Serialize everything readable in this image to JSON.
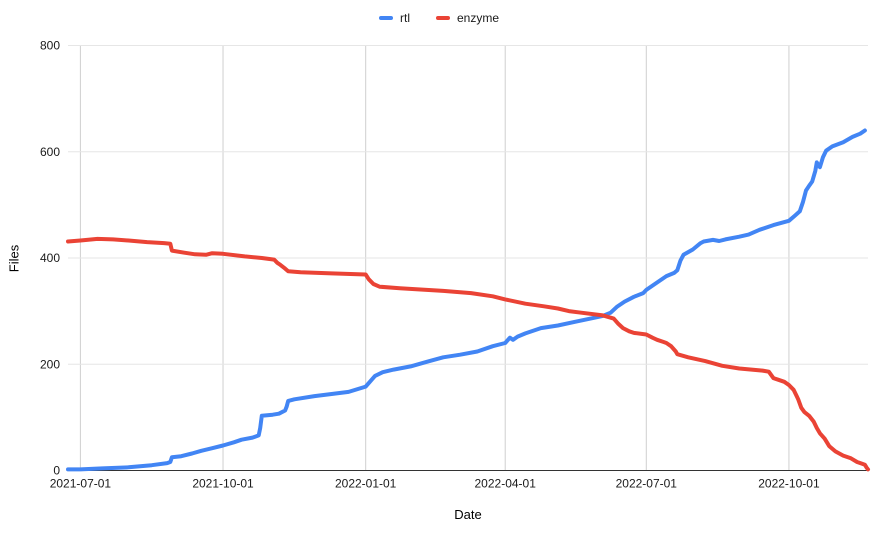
{
  "chart_data": {
    "type": "line",
    "title": "",
    "xlabel": "Date",
    "ylabel": "Files",
    "ylim": [
      0,
      800
    ],
    "y_ticks": [
      0,
      200,
      400,
      600,
      800
    ],
    "x_ticks": [
      "2021-07-01",
      "2021-10-01",
      "2022-01-01",
      "2022-04-01",
      "2022-07-01",
      "2022-10-01"
    ],
    "x_range": [
      "2021-06-23",
      "2022-11-21"
    ],
    "grid": true,
    "legend_position": "top-center",
    "series": [
      {
        "name": "rtl",
        "color": "#4285F4",
        "points": [
          [
            "2021-06-23",
            2
          ],
          [
            "2021-07-01",
            2
          ],
          [
            "2021-07-15",
            4
          ],
          [
            "2021-08-01",
            6
          ],
          [
            "2021-08-16",
            10
          ],
          [
            "2021-08-26",
            14
          ],
          [
            "2021-08-28",
            16
          ],
          [
            "2021-08-29",
            25
          ],
          [
            "2021-09-04",
            27
          ],
          [
            "2021-09-11",
            32
          ],
          [
            "2021-09-17",
            37
          ],
          [
            "2021-09-24",
            42
          ],
          [
            "2021-10-01",
            47
          ],
          [
            "2021-10-08",
            53
          ],
          [
            "2021-10-13",
            58
          ],
          [
            "2021-10-20",
            62
          ],
          [
            "2021-10-24",
            66
          ],
          [
            "2021-10-25",
            80
          ],
          [
            "2021-10-26",
            103
          ],
          [
            "2021-11-02",
            105
          ],
          [
            "2021-11-06",
            107
          ],
          [
            "2021-11-10",
            113
          ],
          [
            "2021-11-11",
            120
          ],
          [
            "2021-11-12",
            131
          ],
          [
            "2021-11-16",
            134
          ],
          [
            "2021-11-29",
            140
          ],
          [
            "2021-12-10",
            144
          ],
          [
            "2021-12-21",
            148
          ],
          [
            "2022-01-01",
            158
          ],
          [
            "2022-01-04",
            168
          ],
          [
            "2022-01-07",
            178
          ],
          [
            "2022-01-12",
            185
          ],
          [
            "2022-01-19",
            190
          ],
          [
            "2022-01-30",
            196
          ],
          [
            "2022-02-10",
            205
          ],
          [
            "2022-02-20",
            213
          ],
          [
            "2022-03-03",
            218
          ],
          [
            "2022-03-14",
            224
          ],
          [
            "2022-03-24",
            234
          ],
          [
            "2022-04-01",
            240
          ],
          [
            "2022-04-04",
            250
          ],
          [
            "2022-04-06",
            246
          ],
          [
            "2022-04-09",
            252
          ],
          [
            "2022-04-14",
            258
          ],
          [
            "2022-04-24",
            268
          ],
          [
            "2022-05-05",
            273
          ],
          [
            "2022-05-16",
            280
          ],
          [
            "2022-05-26",
            286
          ],
          [
            "2022-06-03",
            291
          ],
          [
            "2022-06-08",
            297
          ],
          [
            "2022-06-12",
            308
          ],
          [
            "2022-06-17",
            318
          ],
          [
            "2022-06-23",
            327
          ],
          [
            "2022-06-29",
            334
          ],
          [
            "2022-07-01",
            340
          ],
          [
            "2022-07-07",
            352
          ],
          [
            "2022-07-14",
            366
          ],
          [
            "2022-07-19",
            372
          ],
          [
            "2022-07-21",
            377
          ],
          [
            "2022-07-23",
            395
          ],
          [
            "2022-07-25",
            406
          ],
          [
            "2022-07-31",
            416
          ],
          [
            "2022-08-05",
            428
          ],
          [
            "2022-08-07",
            431
          ],
          [
            "2022-08-13",
            434
          ],
          [
            "2022-08-17",
            432
          ],
          [
            "2022-08-21",
            435
          ],
          [
            "2022-08-30",
            440
          ],
          [
            "2022-09-05",
            444
          ],
          [
            "2022-09-12",
            453
          ],
          [
            "2022-09-21",
            462
          ],
          [
            "2022-10-01",
            470
          ],
          [
            "2022-10-05",
            480
          ],
          [
            "2022-10-08",
            488
          ],
          [
            "2022-10-10",
            505
          ],
          [
            "2022-10-12",
            527
          ],
          [
            "2022-10-14",
            536
          ],
          [
            "2022-10-16",
            544
          ],
          [
            "2022-10-18",
            564
          ],
          [
            "2022-10-19",
            580
          ],
          [
            "2022-10-21",
            571
          ],
          [
            "2022-10-23",
            590
          ],
          [
            "2022-10-25",
            602
          ],
          [
            "2022-10-29",
            610
          ],
          [
            "2022-11-05",
            618
          ],
          [
            "2022-11-11",
            628
          ],
          [
            "2022-11-16",
            634
          ],
          [
            "2022-11-19",
            640
          ]
        ]
      },
      {
        "name": "enzyme",
        "color": "#EA4335",
        "points": [
          [
            "2021-06-23",
            431
          ],
          [
            "2021-07-01",
            433
          ],
          [
            "2021-07-12",
            436
          ],
          [
            "2021-07-22",
            435
          ],
          [
            "2021-08-01",
            433
          ],
          [
            "2021-08-13",
            430
          ],
          [
            "2021-08-24",
            428
          ],
          [
            "2021-08-28",
            427
          ],
          [
            "2021-08-29",
            414
          ],
          [
            "2021-09-06",
            410
          ],
          [
            "2021-09-13",
            407
          ],
          [
            "2021-09-20",
            406
          ],
          [
            "2021-09-24",
            409
          ],
          [
            "2021-10-01",
            408
          ],
          [
            "2021-10-15",
            403
          ],
          [
            "2021-10-26",
            400
          ],
          [
            "2021-11-03",
            397
          ],
          [
            "2021-11-05",
            391
          ],
          [
            "2021-11-07",
            387
          ],
          [
            "2021-11-10",
            380
          ],
          [
            "2021-11-12",
            375
          ],
          [
            "2021-11-20",
            373
          ],
          [
            "2021-12-10",
            371
          ],
          [
            "2022-01-01",
            369
          ],
          [
            "2022-01-03",
            360
          ],
          [
            "2022-01-06",
            351
          ],
          [
            "2022-01-10",
            346
          ],
          [
            "2022-01-23",
            343
          ],
          [
            "2022-02-20",
            338
          ],
          [
            "2022-03-10",
            334
          ],
          [
            "2022-03-24",
            328
          ],
          [
            "2022-04-01",
            322
          ],
          [
            "2022-04-14",
            314
          ],
          [
            "2022-04-26",
            309
          ],
          [
            "2022-05-05",
            305
          ],
          [
            "2022-05-12",
            300
          ],
          [
            "2022-05-20",
            297
          ],
          [
            "2022-06-03",
            292
          ],
          [
            "2022-06-10",
            286
          ],
          [
            "2022-06-13",
            276
          ],
          [
            "2022-06-16",
            268
          ],
          [
            "2022-06-20",
            262
          ],
          [
            "2022-06-23",
            259
          ],
          [
            "2022-07-01",
            256
          ],
          [
            "2022-07-05",
            250
          ],
          [
            "2022-07-08",
            246
          ],
          [
            "2022-07-12",
            242
          ],
          [
            "2022-07-14",
            240
          ],
          [
            "2022-07-17",
            234
          ],
          [
            "2022-07-20",
            224
          ],
          [
            "2022-07-21",
            219
          ],
          [
            "2022-07-28",
            213
          ],
          [
            "2022-08-08",
            206
          ],
          [
            "2022-08-19",
            197
          ],
          [
            "2022-08-30",
            192
          ],
          [
            "2022-09-14",
            188
          ],
          [
            "2022-09-18",
            186
          ],
          [
            "2022-09-21",
            174
          ],
          [
            "2022-09-24",
            171
          ],
          [
            "2022-09-28",
            167
          ],
          [
            "2022-10-01",
            161
          ],
          [
            "2022-10-04",
            152
          ],
          [
            "2022-10-06",
            140
          ],
          [
            "2022-10-07",
            134
          ],
          [
            "2022-10-09",
            118
          ],
          [
            "2022-10-11",
            110
          ],
          [
            "2022-10-14",
            103
          ],
          [
            "2022-10-17",
            92
          ],
          [
            "2022-10-19",
            80
          ],
          [
            "2022-10-21",
            70
          ],
          [
            "2022-10-24",
            60
          ],
          [
            "2022-10-27",
            46
          ],
          [
            "2022-10-31",
            36
          ],
          [
            "2022-11-05",
            28
          ],
          [
            "2022-11-10",
            23
          ],
          [
            "2022-11-14",
            16
          ],
          [
            "2022-11-17",
            13
          ],
          [
            "2022-11-19",
            11
          ],
          [
            "2022-11-20",
            6
          ],
          [
            "2022-11-21",
            2
          ]
        ]
      }
    ]
  }
}
